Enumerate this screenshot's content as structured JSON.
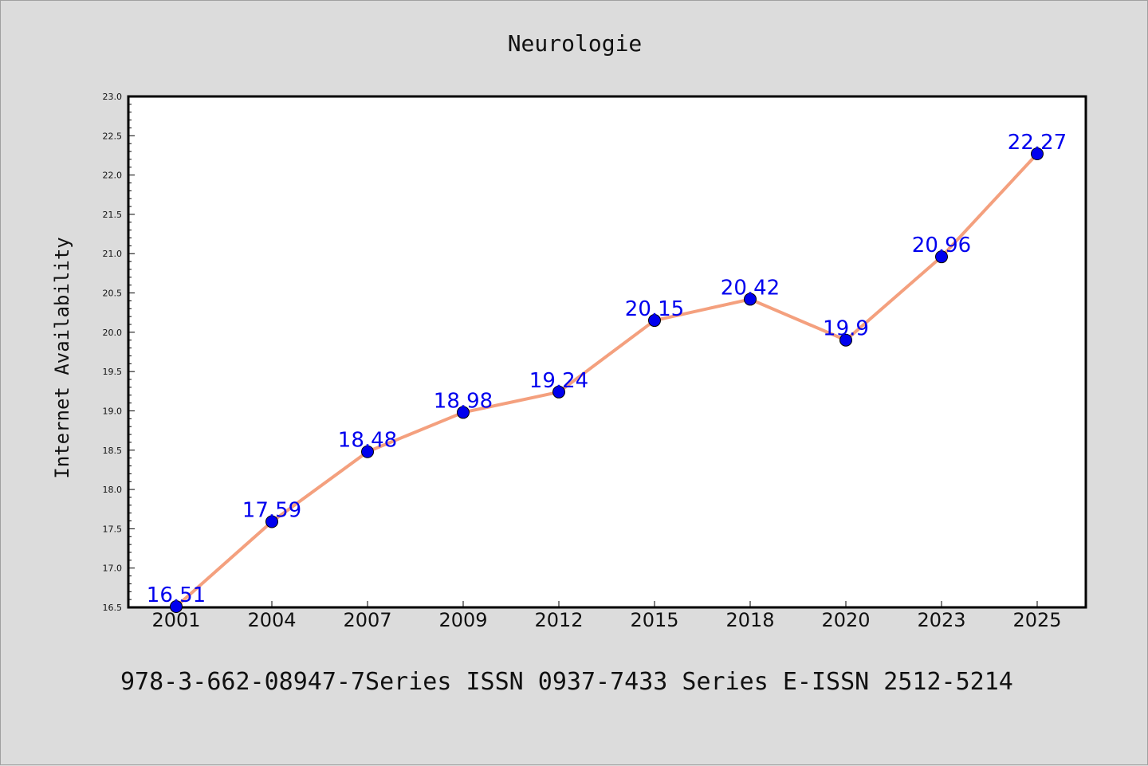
{
  "title": "Neurologie",
  "footer": "978-3-662-08947-7Series ISSN 0937-7433 Series E-ISSN 2512-5214",
  "colors": {
    "background": "#dcdcdc",
    "plot_background": "#ffffff",
    "line": "#f4a07e",
    "marker": "#0000ee",
    "label": "#0000ee"
  },
  "chart_data": {
    "type": "line",
    "title": "Neurologie",
    "xlabel": "",
    "ylabel": "Internet Availability",
    "categories": [
      "2001",
      "2004",
      "2007",
      "2009",
      "2012",
      "2015",
      "2018",
      "2020",
      "2023",
      "2025"
    ],
    "series": [
      {
        "values": [
          16.51,
          17.59,
          18.48,
          18.98,
          19.24,
          20.15,
          20.42,
          19.9,
          20.96,
          22.27
        ]
      }
    ],
    "data_labels": [
      "16.51",
      "17.59",
      "18.48",
      "18.98",
      "19.24",
      "20.15",
      "20.42",
      "19.9",
      "20.96",
      "22.27"
    ],
    "ylim": [
      16.5,
      23.0
    ],
    "yticks": [
      "16.5",
      "17.0",
      "17.5",
      "18.0",
      "18.5",
      "19.0",
      "19.5",
      "20.0",
      "20.5",
      "21.0",
      "21.5",
      "22.0",
      "22.5",
      "23.0"
    ],
    "grid": false,
    "legend": "none"
  }
}
